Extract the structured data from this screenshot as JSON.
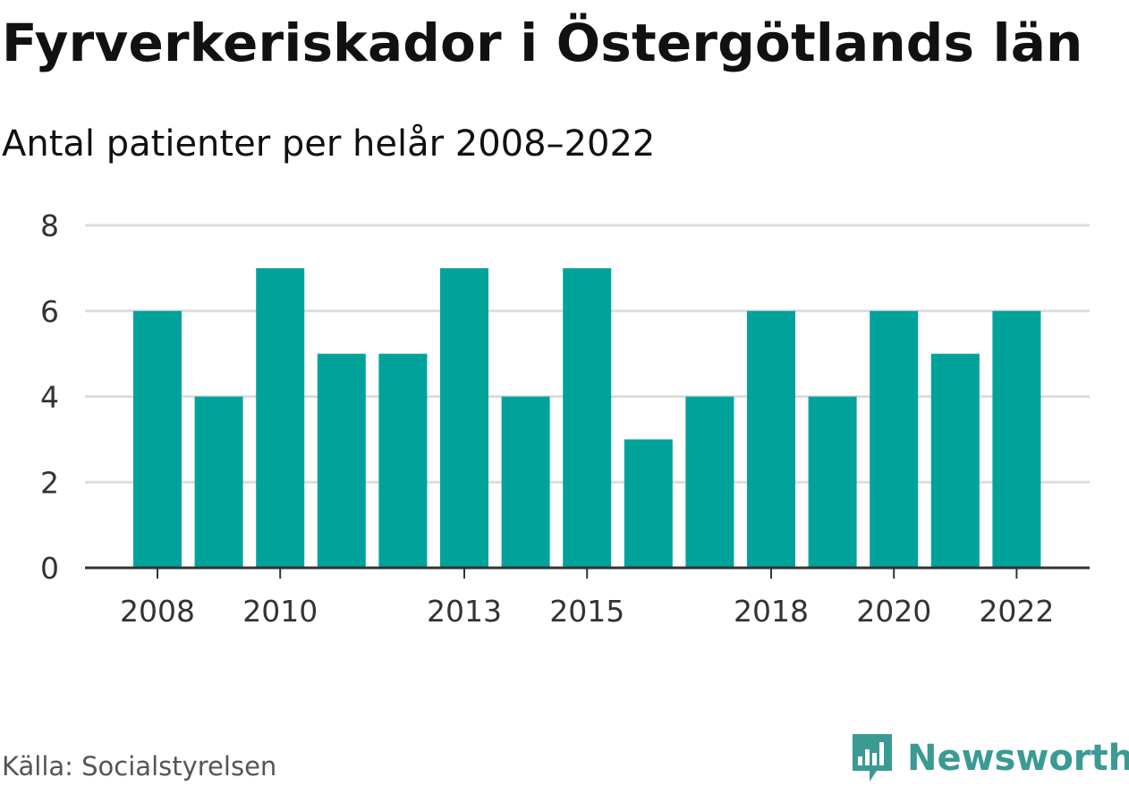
{
  "header": {
    "title": "Fyrverkeriskador i Östergötlands län",
    "subtitle": "Antal patienter per helår 2008–2022"
  },
  "footer": {
    "source": "Källa: Socialstyrelsen",
    "brand": "Newsworthy",
    "brand_icon": "bar-chart-speech-bubble-icon"
  },
  "colors": {
    "bar": "#00a39a",
    "grid": "#dddddd",
    "axis": "#333333",
    "brand": "#3a9a94"
  },
  "chart_data": {
    "type": "bar",
    "categories": [
      "2008",
      "2009",
      "2010",
      "2011",
      "2012",
      "2013",
      "2014",
      "2015",
      "2016",
      "2017",
      "2018",
      "2019",
      "2020",
      "2021",
      "2022"
    ],
    "values": [
      6,
      4,
      7,
      5,
      5,
      7,
      4,
      7,
      3,
      4,
      6,
      4,
      6,
      5,
      6
    ],
    "x_tick_labels": [
      "2008",
      "2010",
      "2013",
      "2015",
      "2018",
      "2020",
      "2022"
    ],
    "y_ticks": [
      0,
      2,
      4,
      6,
      8
    ],
    "ylim": [
      0,
      8
    ],
    "grid": true,
    "legend": "none"
  }
}
